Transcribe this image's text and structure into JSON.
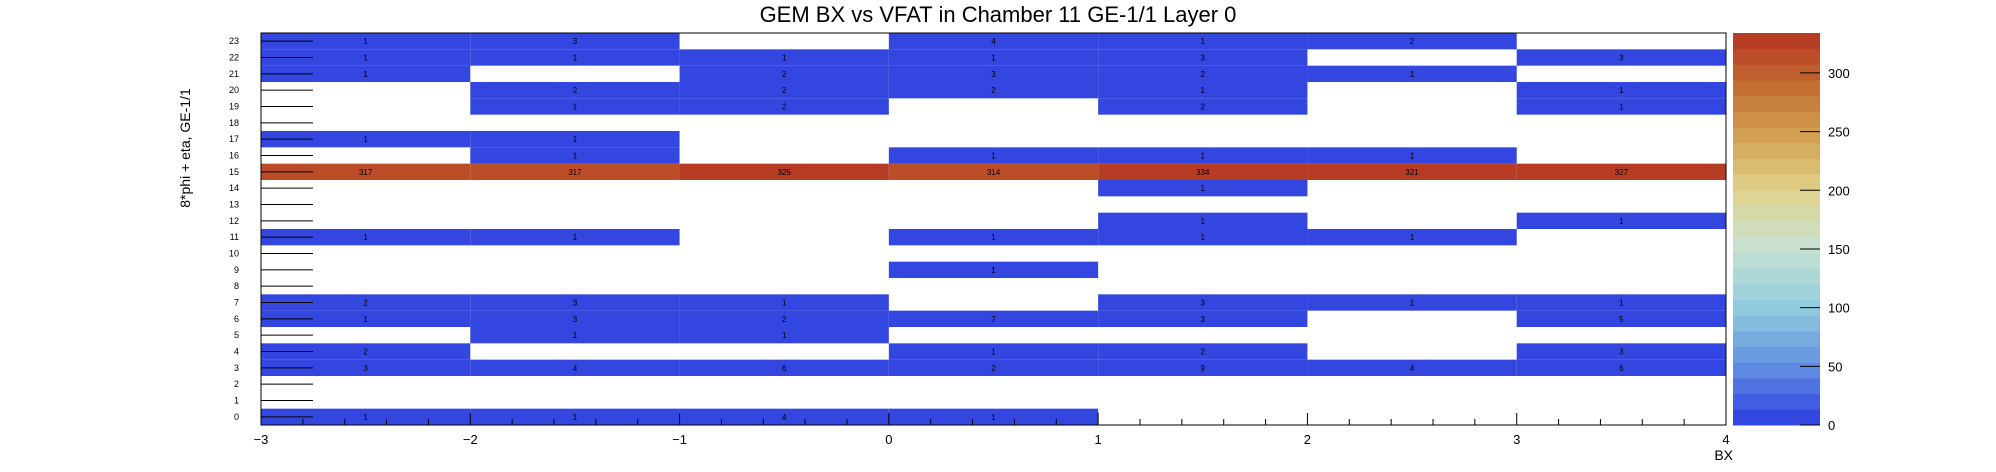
{
  "chart_data": {
    "type": "heatmap",
    "title": "GEM BX vs VFAT in Chamber 11 GE-1/1 Layer 0",
    "xlabel": "BX",
    "ylabel": "8*phi + eta, GE-1/1",
    "xlim": [
      -3,
      4
    ],
    "x_ticks": [
      "−3",
      "−2",
      "−1",
      "0",
      "1",
      "2",
      "3",
      "4"
    ],
    "x_bins": [
      -3,
      -2,
      -1,
      0,
      1,
      2,
      3
    ],
    "y_bins": [
      0,
      1,
      2,
      3,
      4,
      5,
      6,
      7,
      8,
      9,
      10,
      11,
      12,
      13,
      14,
      15,
      16,
      17,
      18,
      19,
      20,
      21,
      22,
      23
    ],
    "colorbar": {
      "min": 0,
      "max": 334,
      "ticks": [
        "0",
        "50",
        "100",
        "150",
        "200",
        "250",
        "300"
      ]
    },
    "cells": [
      {
        "x": -3,
        "y": 0,
        "v": 1
      },
      {
        "x": -2,
        "y": 0,
        "v": 1
      },
      {
        "x": -1,
        "y": 0,
        "v": 4
      },
      {
        "x": 0,
        "y": 0,
        "v": 1
      },
      {
        "x": -3,
        "y": 3,
        "v": 3
      },
      {
        "x": -2,
        "y": 3,
        "v": 4
      },
      {
        "x": -1,
        "y": 3,
        "v": 6
      },
      {
        "x": 0,
        "y": 3,
        "v": 2
      },
      {
        "x": 1,
        "y": 3,
        "v": 9
      },
      {
        "x": 2,
        "y": 3,
        "v": 4
      },
      {
        "x": 3,
        "y": 3,
        "v": 6
      },
      {
        "x": -3,
        "y": 4,
        "v": 2
      },
      {
        "x": 0,
        "y": 4,
        "v": 1
      },
      {
        "x": 1,
        "y": 4,
        "v": 2
      },
      {
        "x": 3,
        "y": 4,
        "v": 3
      },
      {
        "x": -2,
        "y": 5,
        "v": 1
      },
      {
        "x": -1,
        "y": 5,
        "v": 1
      },
      {
        "x": -3,
        "y": 6,
        "v": 1
      },
      {
        "x": -2,
        "y": 6,
        "v": 3
      },
      {
        "x": -1,
        "y": 6,
        "v": 2
      },
      {
        "x": 0,
        "y": 6,
        "v": 7
      },
      {
        "x": 1,
        "y": 6,
        "v": 3
      },
      {
        "x": 3,
        "y": 6,
        "v": 5
      },
      {
        "x": -3,
        "y": 7,
        "v": 2
      },
      {
        "x": -2,
        "y": 7,
        "v": 3
      },
      {
        "x": -1,
        "y": 7,
        "v": 1
      },
      {
        "x": 1,
        "y": 7,
        "v": 3
      },
      {
        "x": 2,
        "y": 7,
        "v": 1
      },
      {
        "x": 3,
        "y": 7,
        "v": 1
      },
      {
        "x": 0,
        "y": 9,
        "v": 1
      },
      {
        "x": -3,
        "y": 11,
        "v": 1
      },
      {
        "x": -2,
        "y": 11,
        "v": 1
      },
      {
        "x": 0,
        "y": 11,
        "v": 1
      },
      {
        "x": 1,
        "y": 11,
        "v": 1
      },
      {
        "x": 2,
        "y": 11,
        "v": 1
      },
      {
        "x": 1,
        "y": 12,
        "v": 1
      },
      {
        "x": 3,
        "y": 12,
        "v": 1
      },
      {
        "x": 1,
        "y": 14,
        "v": 1
      },
      {
        "x": -3,
        "y": 15,
        "v": 317
      },
      {
        "x": -2,
        "y": 15,
        "v": 317
      },
      {
        "x": -1,
        "y": 15,
        "v": 325
      },
      {
        "x": 0,
        "y": 15,
        "v": 314
      },
      {
        "x": 1,
        "y": 15,
        "v": 334
      },
      {
        "x": 2,
        "y": 15,
        "v": 321
      },
      {
        "x": 3,
        "y": 15,
        "v": 327
      },
      {
        "x": -2,
        "y": 16,
        "v": 1
      },
      {
        "x": 0,
        "y": 16,
        "v": 1
      },
      {
        "x": 1,
        "y": 16,
        "v": 1
      },
      {
        "x": 2,
        "y": 16,
        "v": 1
      },
      {
        "x": -3,
        "y": 17,
        "v": 1
      },
      {
        "x": -2,
        "y": 17,
        "v": 1
      },
      {
        "x": -2,
        "y": 19,
        "v": 1
      },
      {
        "x": -1,
        "y": 19,
        "v": 2
      },
      {
        "x": 1,
        "y": 19,
        "v": 2
      },
      {
        "x": 3,
        "y": 19,
        "v": 1
      },
      {
        "x": -2,
        "y": 20,
        "v": 2
      },
      {
        "x": -1,
        "y": 20,
        "v": 2
      },
      {
        "x": 0,
        "y": 20,
        "v": 2
      },
      {
        "x": 1,
        "y": 20,
        "v": 1
      },
      {
        "x": 3,
        "y": 20,
        "v": 1
      },
      {
        "x": -3,
        "y": 21,
        "v": 1
      },
      {
        "x": -1,
        "y": 21,
        "v": 2
      },
      {
        "x": 0,
        "y": 21,
        "v": 3
      },
      {
        "x": 1,
        "y": 21,
        "v": 2
      },
      {
        "x": 2,
        "y": 21,
        "v": 1
      },
      {
        "x": -3,
        "y": 22,
        "v": 1
      },
      {
        "x": -2,
        "y": 22,
        "v": 1
      },
      {
        "x": -1,
        "y": 22,
        "v": 1
      },
      {
        "x": 0,
        "y": 22,
        "v": 1
      },
      {
        "x": 1,
        "y": 22,
        "v": 3
      },
      {
        "x": 3,
        "y": 22,
        "v": 3
      },
      {
        "x": -3,
        "y": 23,
        "v": 1
      },
      {
        "x": -2,
        "y": 23,
        "v": 3
      },
      {
        "x": 0,
        "y": 23,
        "v": 4
      },
      {
        "x": 1,
        "y": 23,
        "v": 1
      },
      {
        "x": 2,
        "y": 23,
        "v": 2
      }
    ],
    "grid": false,
    "colors": {
      "low": "#3347e0",
      "high": "#b93d20"
    }
  }
}
